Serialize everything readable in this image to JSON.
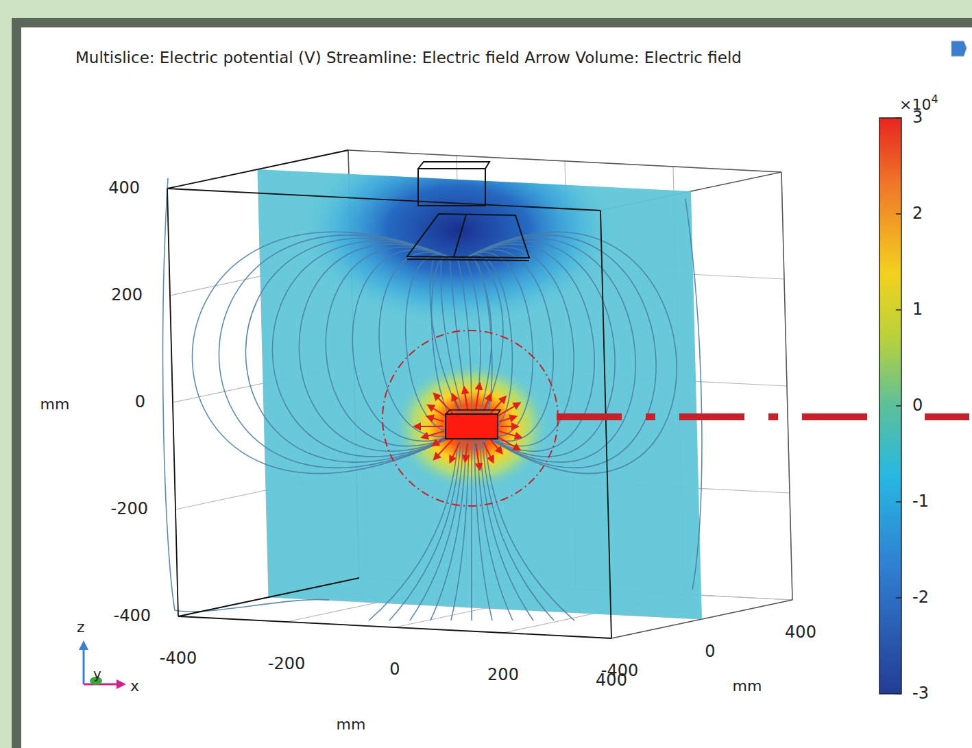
{
  "chart_data": {
    "type": "field",
    "title": "Multislice: Electric potential (V)  Streamline: Electric field  Arrow Volume: Electric field",
    "x_label": "mm",
    "y_label": "mm",
    "z_label": "mm",
    "axis_names": [
      "x",
      "y",
      "z"
    ],
    "xlim": [
      -400,
      400
    ],
    "ylim": [
      -400,
      400
    ],
    "zlim": [
      -400,
      400
    ],
    "xticks": [
      -400,
      -200,
      0,
      200,
      400
    ],
    "yticks": [
      -400,
      0,
      400
    ],
    "zticks": [
      -400,
      -200,
      0,
      200,
      400
    ],
    "grid": true,
    "colorbar": {
      "multiplier": "×10",
      "exponent": "4",
      "lim": [
        -3,
        3
      ],
      "ticks": [
        -3,
        -2,
        -1,
        0,
        1,
        2,
        3
      ]
    }
  }
}
